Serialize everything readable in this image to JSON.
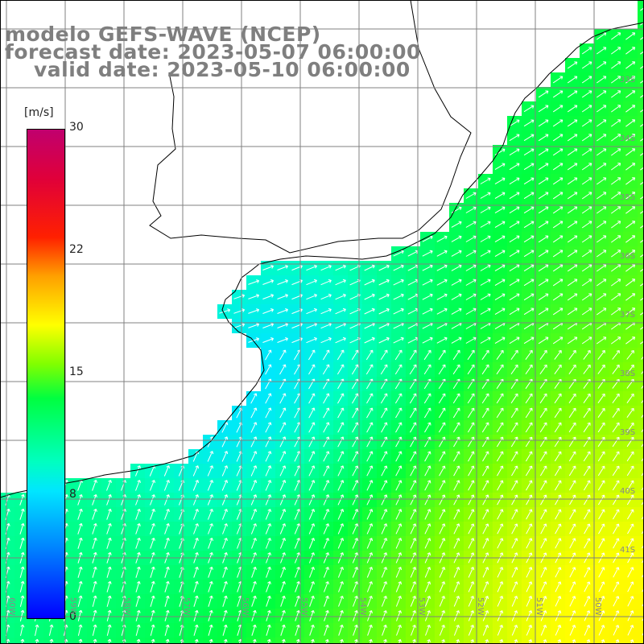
{
  "title": {
    "line1": "modelo GEFS-WAVE (NCEP)",
    "line2": "forecast date: 2023-05-07 06:00:00",
    "line3": "valid date: 2023-05-10 06:00:00"
  },
  "colorbar": {
    "unit": "[m/s]",
    "labels": [
      "30",
      "22",
      "15",
      "8",
      "0"
    ],
    "min": 0,
    "max": 30,
    "colors": [
      "#0000ff",
      "#0080ff",
      "#00e6ff",
      "#00ff40",
      "#ffff00",
      "#ff2000",
      "#c0006e"
    ]
  },
  "axes": {
    "lat_labels": [
      "33S",
      "34S",
      "35S",
      "36S",
      "37S",
      "38S",
      "39S",
      "40S",
      "41S"
    ],
    "lon_labels": [
      "60W",
      "59W",
      "58W",
      "57W",
      "56W",
      "55W",
      "54W",
      "53W",
      "52W",
      "51W",
      "50W"
    ]
  },
  "colors": {
    "land": "#ffffff",
    "coast": "#000000",
    "grid": "#808080",
    "arrow": "#ffffff",
    "title": "#7f7f7f"
  }
}
